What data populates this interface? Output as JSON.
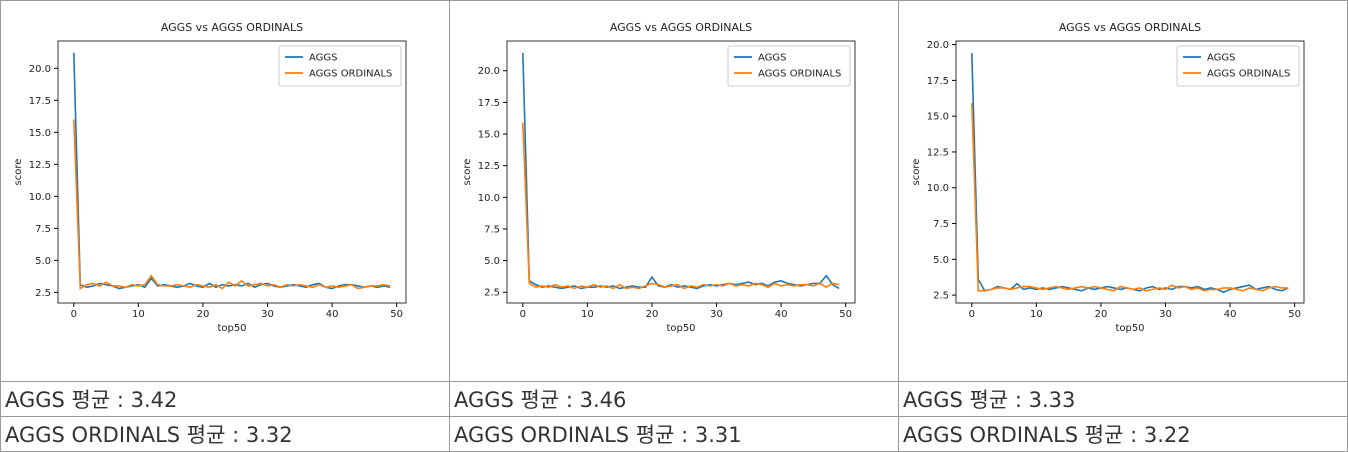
{
  "chart_data": [
    {
      "type": "line",
      "title": "AGGS vs AGGS ORDINALS",
      "xlabel": "top50",
      "ylabel": "score",
      "x": [
        0,
        1,
        2,
        3,
        4,
        5,
        6,
        7,
        8,
        9,
        10,
        11,
        12,
        13,
        14,
        15,
        16,
        17,
        18,
        19,
        20,
        21,
        22,
        23,
        24,
        25,
        26,
        27,
        28,
        29,
        30,
        31,
        32,
        33,
        34,
        35,
        36,
        37,
        38,
        39,
        40,
        41,
        42,
        43,
        44,
        45,
        46,
        47,
        48,
        49
      ],
      "xlim": [
        -2.45,
        51.45
      ],
      "xticks": [
        0,
        10,
        20,
        30,
        40,
        50
      ],
      "ylim": [
        1.67,
        22.13
      ],
      "yticks": [
        {
          "value": 2.5,
          "label": "2.5"
        },
        {
          "value": 5,
          "label": "5.0"
        },
        {
          "value": 7.5,
          "label": "7.5"
        },
        {
          "value": 10,
          "label": "10.0"
        },
        {
          "value": 12.5,
          "label": "12.5"
        },
        {
          "value": 15,
          "label": "15.0"
        },
        {
          "value": 17.5,
          "label": "17.5"
        },
        {
          "value": 20,
          "label": "20.0"
        }
      ],
      "legend": "upper right",
      "series": [
        {
          "name": "AGGS",
          "color": "#1f77b4",
          "values": [
            21.2,
            3.1,
            2.9,
            3.0,
            3.2,
            3.1,
            3.0,
            2.8,
            2.9,
            3.0,
            3.1,
            2.9,
            3.6,
            3.0,
            3.1,
            3.0,
            2.9,
            3.0,
            3.2,
            3.0,
            2.9,
            3.2,
            2.9,
            3.1,
            3.0,
            3.1,
            3.0,
            3.2,
            2.9,
            3.1,
            3.2,
            3.0,
            2.9,
            3.0,
            3.1,
            3.0,
            2.9,
            3.1,
            3.2,
            2.9,
            2.8,
            3.0,
            3.1,
            3.1,
            3.0,
            2.9,
            3.0,
            2.9,
            3.0,
            2.9
          ]
        },
        {
          "name": "AGGS ORDINALS",
          "color": "#ff7f0e",
          "values": [
            16.0,
            2.8,
            3.1,
            3.2,
            3.0,
            3.3,
            3.0,
            3.0,
            2.9,
            3.1,
            3.0,
            3.1,
            3.8,
            3.1,
            3.0,
            3.0,
            3.1,
            3.0,
            2.9,
            3.1,
            3.0,
            2.9,
            3.1,
            2.8,
            3.3,
            3.0,
            3.4,
            3.0,
            3.1,
            3.2,
            3.0,
            3.1,
            2.9,
            3.1,
            3.0,
            3.1,
            3.0,
            2.9,
            3.1,
            2.9,
            3.0,
            2.9,
            3.0,
            3.1,
            2.8,
            2.9,
            3.0,
            3.0,
            3.1,
            3.0
          ]
        }
      ]
    },
    {
      "type": "line",
      "title": "AGGS vs AGGS ORDINALS",
      "xlabel": "top50",
      "ylabel": "score",
      "x": [
        0,
        1,
        2,
        3,
        4,
        5,
        6,
        7,
        8,
        9,
        10,
        11,
        12,
        13,
        14,
        15,
        16,
        17,
        18,
        19,
        20,
        21,
        22,
        23,
        24,
        25,
        26,
        27,
        28,
        29,
        30,
        31,
        32,
        33,
        34,
        35,
        36,
        37,
        38,
        39,
        40,
        41,
        42,
        43,
        44,
        45,
        46,
        47,
        48,
        49
      ],
      "xlim": [
        -2.45,
        51.45
      ],
      "xticks": [
        0,
        10,
        20,
        30,
        40,
        50
      ],
      "ylim": [
        1.65,
        22.35
      ],
      "yticks": [
        {
          "value": 2.5,
          "label": "2.5"
        },
        {
          "value": 5,
          "label": "5.0"
        },
        {
          "value": 7.5,
          "label": "7.5"
        },
        {
          "value": 10,
          "label": "10.0"
        },
        {
          "value": 12.5,
          "label": "12.5"
        },
        {
          "value": 15,
          "label": "15.0"
        },
        {
          "value": 17.5,
          "label": "17.5"
        },
        {
          "value": 20,
          "label": "20.0"
        }
      ],
      "legend": "upper right",
      "series": [
        {
          "name": "AGGS",
          "color": "#1f77b4",
          "values": [
            21.4,
            3.4,
            3.1,
            2.9,
            3.0,
            2.9,
            2.8,
            2.9,
            3.0,
            2.8,
            2.9,
            2.9,
            3.0,
            2.9,
            3.0,
            2.8,
            2.9,
            3.0,
            2.9,
            2.9,
            3.7,
            3.0,
            2.9,
            3.1,
            2.9,
            3.0,
            2.9,
            2.8,
            3.0,
            3.1,
            3.0,
            3.1,
            3.2,
            3.1,
            3.2,
            3.3,
            3.1,
            3.2,
            3.0,
            3.3,
            3.4,
            3.2,
            3.1,
            3.0,
            3.1,
            3.2,
            3.2,
            3.8,
            3.1,
            2.8
          ]
        },
        {
          "name": "AGGS ORDINALS",
          "color": "#ff7f0e",
          "values": [
            15.9,
            3.2,
            2.9,
            3.0,
            2.9,
            3.1,
            2.9,
            3.0,
            2.8,
            3.0,
            2.9,
            3.1,
            2.9,
            3.0,
            2.8,
            3.1,
            2.8,
            2.9,
            2.8,
            3.0,
            3.2,
            3.1,
            2.9,
            3.0,
            3.1,
            2.8,
            3.0,
            2.9,
            3.1,
            3.0,
            3.1,
            3.0,
            3.2,
            3.0,
            3.1,
            3.0,
            3.2,
            3.1,
            2.9,
            3.2,
            3.0,
            3.1,
            3.0,
            3.1,
            3.1,
            3.0,
            3.2,
            2.9,
            3.2,
            3.1
          ]
        }
      ]
    },
    {
      "type": "line",
      "title": "AGGS vs AGGS ORDINALS",
      "xlabel": "top50",
      "ylabel": "score",
      "x": [
        0,
        1,
        2,
        3,
        4,
        5,
        6,
        7,
        8,
        9,
        10,
        11,
        12,
        13,
        14,
        15,
        16,
        17,
        18,
        19,
        20,
        21,
        22,
        23,
        24,
        25,
        26,
        27,
        28,
        29,
        30,
        31,
        32,
        33,
        34,
        35,
        36,
        37,
        38,
        39,
        40,
        41,
        42,
        43,
        44,
        45,
        46,
        47,
        48,
        49
      ],
      "xlim": [
        -2.45,
        51.45
      ],
      "xticks": [
        0,
        10,
        20,
        30,
        40,
        50
      ],
      "ylim": [
        1.95,
        20.25
      ],
      "yticks": [
        {
          "value": 2.5,
          "label": "2.5"
        },
        {
          "value": 5,
          "label": "5.0"
        },
        {
          "value": 7.5,
          "label": "7.5"
        },
        {
          "value": 10,
          "label": "10.0"
        },
        {
          "value": 12.5,
          "label": "12.5"
        },
        {
          "value": 15,
          "label": "15.0"
        },
        {
          "value": 17.5,
          "label": "17.5"
        },
        {
          "value": 20,
          "label": "20.0"
        }
      ],
      "legend": "upper right",
      "series": [
        {
          "name": "AGGS",
          "color": "#1f77b4",
          "values": [
            19.4,
            3.6,
            2.8,
            2.9,
            3.1,
            3.0,
            2.9,
            3.3,
            2.9,
            3.0,
            2.9,
            3.0,
            2.9,
            3.0,
            3.1,
            3.0,
            2.9,
            2.8,
            3.0,
            2.9,
            3.0,
            3.1,
            3.0,
            2.9,
            3.0,
            2.9,
            2.8,
            3.0,
            3.1,
            2.9,
            3.0,
            2.9,
            3.1,
            3.1,
            3.0,
            3.1,
            2.9,
            3.0,
            2.9,
            2.7,
            2.9,
            3.0,
            3.1,
            3.2,
            2.9,
            3.0,
            3.1,
            2.9,
            2.8,
            3.0
          ]
        },
        {
          "name": "AGGS ORDINALS",
          "color": "#ff7f0e",
          "values": [
            15.9,
            2.8,
            2.8,
            2.9,
            3.0,
            3.0,
            2.9,
            3.0,
            3.1,
            3.1,
            3.0,
            2.9,
            3.0,
            3.1,
            3.0,
            2.9,
            3.0,
            3.1,
            3.0,
            3.1,
            3.0,
            2.9,
            2.8,
            3.1,
            3.0,
            2.9,
            3.0,
            2.8,
            2.9,
            3.0,
            2.9,
            3.2,
            3.0,
            3.1,
            2.9,
            3.0,
            2.8,
            2.9,
            2.9,
            3.0,
            3.0,
            2.9,
            2.8,
            3.0,
            2.9,
            2.8,
            3.0,
            3.1,
            3.0,
            3.0
          ]
        }
      ]
    }
  ],
  "captions": [
    [
      "AGGS 평균 : 3.42",
      "AGGS ORDINALS 평균 : 3.32"
    ],
    [
      "AGGS 평균 : 3.46",
      "AGGS ORDINALS 평균 : 3.31"
    ],
    [
      "AGGS 평균 : 3.33",
      "AGGS ORDINALS 평균 : 3.22"
    ]
  ]
}
